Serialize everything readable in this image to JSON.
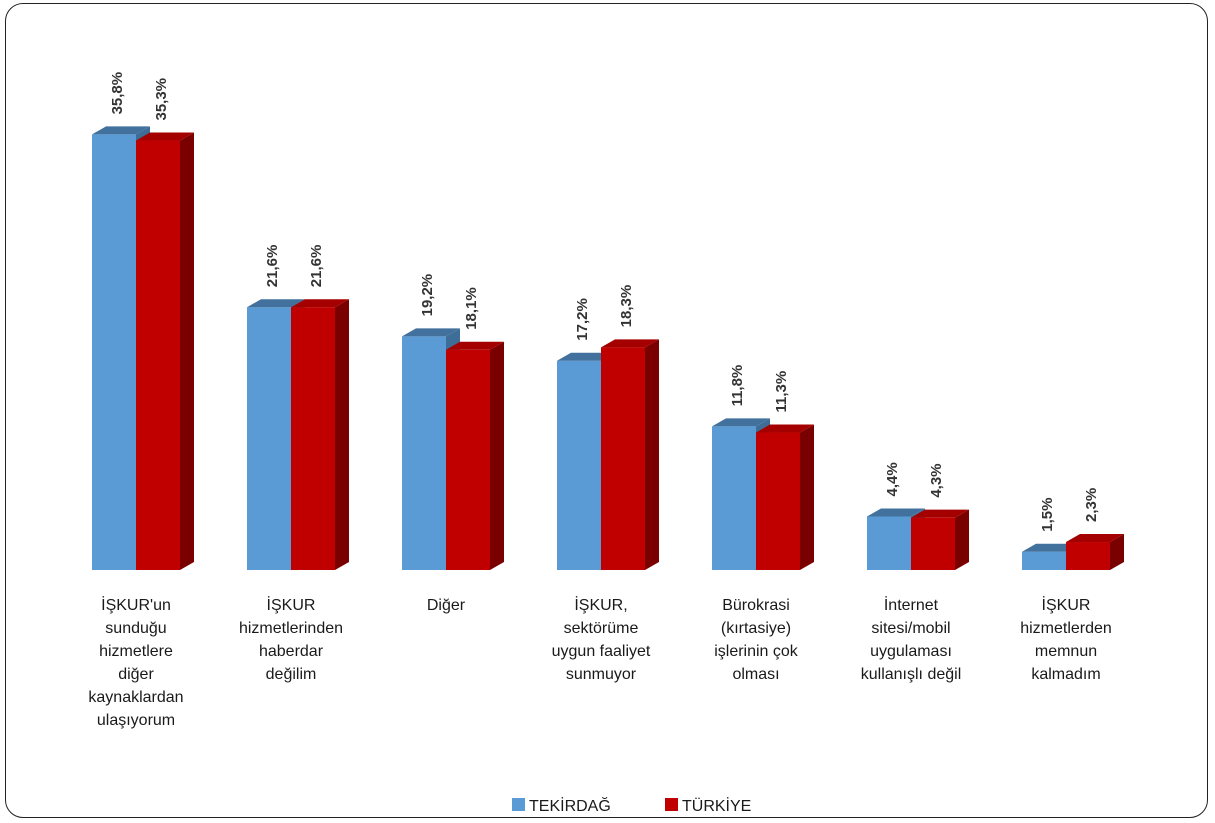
{
  "chart_data": {
    "type": "bar",
    "categories": [
      [
        "İŞKUR'un",
        "sunduğu",
        "hizmetlere",
        "diğer",
        "kaynaklardan",
        "ulaşıyorum"
      ],
      [
        "İŞKUR",
        "hizmetlerinden",
        "haberdar",
        "değilim"
      ],
      [
        "Diğer"
      ],
      [
        "İŞKUR,",
        "sektörüme",
        "uygun faaliyet",
        "sunmuyor"
      ],
      [
        "Bürokrasi",
        "(kırtasiye)",
        "işlerinin çok",
        "olması"
      ],
      [
        "İnternet",
        "sitesi/mobil",
        "uygulaması",
        "kullanışlı değil"
      ],
      [
        "İŞKUR",
        "hizmetlerden",
        "memnun",
        "kalmadım"
      ]
    ],
    "series": [
      {
        "name": "TEKİRDAĞ",
        "values": [
          35.8,
          21.6,
          19.2,
          17.2,
          11.8,
          4.4,
          1.5
        ],
        "labels": [
          "35,8%",
          "21,6%",
          "19,2%",
          "17,2%",
          "11,8%",
          "4,4%",
          "1,5%"
        ],
        "color": "#5B9BD5",
        "top_color": "#41719C",
        "side_color": "#3E6E98"
      },
      {
        "name": "TÜRKİYE",
        "values": [
          35.3,
          21.6,
          18.1,
          18.3,
          11.3,
          4.3,
          2.3
        ],
        "labels": [
          "35,3%",
          "21,6%",
          "18,1%",
          "18,3%",
          "11,3%",
          "4,3%",
          "2,3%"
        ],
        "color": "#C00000",
        "top_color": "#A50000",
        "side_color": "#7A0000"
      }
    ],
    "title": "",
    "xlabel": "",
    "ylabel": "",
    "ylim": [
      0,
      36
    ],
    "grid": false,
    "legend_position": "bottom"
  }
}
